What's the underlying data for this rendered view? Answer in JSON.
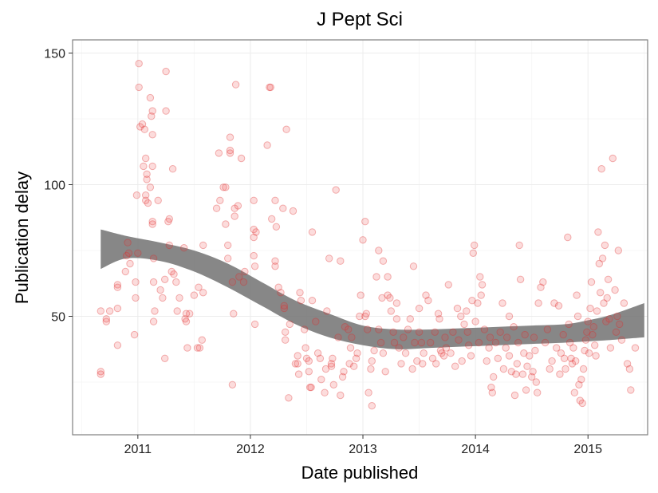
{
  "chart_data": {
    "type": "scatter",
    "title": "J Pept Sci",
    "xlabel": "Date published",
    "ylabel": "Publication delay",
    "xlim": [
      2010.42,
      2015.53
    ],
    "ylim": [
      5,
      155
    ],
    "x_ticks": [
      2011,
      2012,
      2013,
      2014,
      2015
    ],
    "x_tick_labels": [
      "2011",
      "2012",
      "2013",
      "2014",
      "2015"
    ],
    "y_ticks": [
      50,
      100,
      150
    ],
    "y_tick_labels": [
      "50",
      "100",
      "150"
    ],
    "grid": true,
    "legend": "none",
    "colors": {
      "points": "#f03c3c",
      "smooth_band": "#7a7a7a"
    },
    "points": [
      [
        2010.67,
        52
      ],
      [
        2010.67,
        29
      ],
      [
        2010.67,
        28
      ],
      [
        2010.72,
        49
      ],
      [
        2010.72,
        48
      ],
      [
        2010.75,
        52
      ],
      [
        2010.82,
        53
      ],
      [
        2010.82,
        62
      ],
      [
        2010.82,
        61
      ],
      [
        2010.82,
        39
      ],
      [
        2010.89,
        67
      ],
      [
        2010.9,
        73
      ],
      [
        2010.91,
        78
      ],
      [
        2010.92,
        74
      ],
      [
        2010.93,
        70
      ],
      [
        2010.97,
        43
      ],
      [
        2010.98,
        57
      ],
      [
        2010.98,
        63
      ],
      [
        2010.99,
        96
      ],
      [
        2011.0,
        74
      ],
      [
        2011.01,
        146
      ],
      [
        2011.01,
        137
      ],
      [
        2011.02,
        122
      ],
      [
        2011.04,
        123
      ],
      [
        2011.05,
        107
      ],
      [
        2011.06,
        121
      ],
      [
        2011.07,
        110
      ],
      [
        2011.07,
        96
      ],
      [
        2011.07,
        94
      ],
      [
        2011.08,
        104
      ],
      [
        2011.08,
        102
      ],
      [
        2011.09,
        93
      ],
      [
        2011.11,
        133
      ],
      [
        2011.11,
        99
      ],
      [
        2011.12,
        126
      ],
      [
        2011.13,
        128
      ],
      [
        2011.13,
        119
      ],
      [
        2011.13,
        107
      ],
      [
        2011.13,
        86
      ],
      [
        2011.13,
        85
      ],
      [
        2011.14,
        63
      ],
      [
        2011.14,
        48
      ],
      [
        2011.14,
        72
      ],
      [
        2011.15,
        52
      ],
      [
        2011.18,
        94
      ],
      [
        2011.2,
        60
      ],
      [
        2011.22,
        57
      ],
      [
        2011.24,
        34
      ],
      [
        2011.24,
        64
      ],
      [
        2011.25,
        143
      ],
      [
        2011.25,
        128
      ],
      [
        2011.27,
        86
      ],
      [
        2011.28,
        87
      ],
      [
        2011.28,
        77
      ],
      [
        2011.31,
        106
      ],
      [
        2011.3,
        67
      ],
      [
        2011.32,
        66
      ],
      [
        2011.34,
        63
      ],
      [
        2011.35,
        52
      ],
      [
        2011.37,
        57
      ],
      [
        2011.41,
        76
      ],
      [
        2011.42,
        49
      ],
      [
        2011.43,
        48
      ],
      [
        2011.43,
        51
      ],
      [
        2011.44,
        38
      ],
      [
        2011.46,
        51
      ],
      [
        2011.5,
        58
      ],
      [
        2011.53,
        38
      ],
      [
        2011.54,
        61
      ],
      [
        2011.55,
        38
      ],
      [
        2011.57,
        41
      ],
      [
        2011.58,
        59
      ],
      [
        2011.58,
        77
      ],
      [
        2011.7,
        91
      ],
      [
        2011.72,
        112
      ],
      [
        2011.73,
        94
      ],
      [
        2011.76,
        99
      ],
      [
        2011.78,
        99
      ],
      [
        2011.78,
        85
      ],
      [
        2011.8,
        77
      ],
      [
        2011.8,
        72
      ],
      [
        2011.82,
        118
      ],
      [
        2011.82,
        113
      ],
      [
        2011.82,
        112
      ],
      [
        2011.84,
        63
      ],
      [
        2011.85,
        51
      ],
      [
        2011.86,
        88
      ],
      [
        2011.86,
        91
      ],
      [
        2011.87,
        138
      ],
      [
        2011.89,
        92
      ],
      [
        2011.9,
        65
      ],
      [
        2011.92,
        110
      ],
      [
        2011.94,
        63
      ],
      [
        2011.95,
        67
      ],
      [
        2011.84,
        24
      ],
      [
        2012.03,
        94
      ],
      [
        2012.03,
        80
      ],
      [
        2012.03,
        83
      ],
      [
        2012.03,
        73
      ],
      [
        2012.04,
        69
      ],
      [
        2012.04,
        47
      ],
      [
        2012.05,
        82
      ],
      [
        2012.15,
        115
      ],
      [
        2012.17,
        137
      ],
      [
        2012.18,
        137
      ],
      [
        2012.19,
        87
      ],
      [
        2012.22,
        94
      ],
      [
        2012.22,
        69
      ],
      [
        2012.22,
        71
      ],
      [
        2012.23,
        84
      ],
      [
        2012.25,
        61
      ],
      [
        2012.27,
        59
      ],
      [
        2012.29,
        91
      ],
      [
        2012.3,
        53
      ],
      [
        2012.3,
        54
      ],
      [
        2012.31,
        44
      ],
      [
        2012.31,
        41
      ],
      [
        2012.32,
        121
      ],
      [
        2012.34,
        19
      ],
      [
        2012.35,
        47
      ],
      [
        2012.38,
        90
      ],
      [
        2012.4,
        32
      ],
      [
        2012.42,
        32
      ],
      [
        2012.42,
        35
      ],
      [
        2012.43,
        28
      ],
      [
        2012.44,
        59
      ],
      [
        2012.45,
        56
      ],
      [
        2012.48,
        45
      ],
      [
        2012.49,
        38
      ],
      [
        2012.5,
        34
      ],
      [
        2012.52,
        33
      ],
      [
        2012.52,
        29
      ],
      [
        2012.53,
        23
      ],
      [
        2012.54,
        23
      ],
      [
        2012.55,
        82
      ],
      [
        2012.55,
        56
      ],
      [
        2012.58,
        48
      ],
      [
        2012.6,
        36
      ],
      [
        2012.62,
        34
      ],
      [
        2012.63,
        26
      ],
      [
        2012.66,
        21
      ],
      [
        2012.67,
        30
      ],
      [
        2012.68,
        52
      ],
      [
        2012.7,
        72
      ],
      [
        2012.72,
        31
      ],
      [
        2012.72,
        32
      ],
      [
        2012.73,
        34
      ],
      [
        2012.74,
        24
      ],
      [
        2012.76,
        98
      ],
      [
        2012.78,
        42
      ],
      [
        2012.8,
        71
      ],
      [
        2012.8,
        20
      ],
      [
        2012.82,
        27
      ],
      [
        2012.83,
        29
      ],
      [
        2012.84,
        46
      ],
      [
        2012.87,
        45
      ],
      [
        2012.88,
        32
      ],
      [
        2012.89,
        38
      ],
      [
        2012.9,
        42
      ],
      [
        2012.92,
        31
      ],
      [
        2012.94,
        34
      ],
      [
        2012.95,
        36
      ],
      [
        2012.97,
        50
      ],
      [
        2012.98,
        58
      ],
      [
        2013.0,
        79
      ],
      [
        2013.02,
        86
      ],
      [
        2013.02,
        50
      ],
      [
        2013.03,
        51
      ],
      [
        2013.04,
        45
      ],
      [
        2013.05,
        21
      ],
      [
        2013.07,
        30
      ],
      [
        2013.08,
        16
      ],
      [
        2013.08,
        33
      ],
      [
        2013.1,
        37
      ],
      [
        2013.12,
        65
      ],
      [
        2013.14,
        75
      ],
      [
        2013.14,
        45
      ],
      [
        2013.16,
        40
      ],
      [
        2013.17,
        57
      ],
      [
        2013.18,
        71
      ],
      [
        2013.18,
        36
      ],
      [
        2013.2,
        29
      ],
      [
        2013.22,
        65
      ],
      [
        2013.22,
        58
      ],
      [
        2013.24,
        57
      ],
      [
        2013.25,
        52
      ],
      [
        2013.27,
        44
      ],
      [
        2013.28,
        40
      ],
      [
        2013.3,
        55
      ],
      [
        2013.3,
        49
      ],
      [
        2013.32,
        38
      ],
      [
        2013.34,
        32
      ],
      [
        2013.36,
        42
      ],
      [
        2013.38,
        36
      ],
      [
        2013.4,
        45
      ],
      [
        2013.42,
        49
      ],
      [
        2013.44,
        30
      ],
      [
        2013.45,
        69
      ],
      [
        2013.46,
        40
      ],
      [
        2013.48,
        33
      ],
      [
        2013.5,
        44
      ],
      [
        2013.5,
        53
      ],
      [
        2013.52,
        40
      ],
      [
        2013.53,
        32
      ],
      [
        2013.54,
        36
      ],
      [
        2013.56,
        58
      ],
      [
        2013.58,
        56
      ],
      [
        2013.6,
        40
      ],
      [
        2013.62,
        34
      ],
      [
        2013.64,
        44
      ],
      [
        2013.65,
        32
      ],
      [
        2013.67,
        51
      ],
      [
        2013.68,
        49
      ],
      [
        2013.69,
        37
      ],
      [
        2013.7,
        36
      ],
      [
        2013.72,
        35
      ],
      [
        2013.73,
        42
      ],
      [
        2013.74,
        38
      ],
      [
        2013.76,
        62
      ],
      [
        2013.78,
        36
      ],
      [
        2013.8,
        44
      ],
      [
        2013.82,
        31
      ],
      [
        2013.84,
        53
      ],
      [
        2013.85,
        41
      ],
      [
        2013.87,
        50
      ],
      [
        2013.88,
        33
      ],
      [
        2013.9,
        47
      ],
      [
        2013.92,
        52
      ],
      [
        2013.93,
        44
      ],
      [
        2013.94,
        39
      ],
      [
        2013.96,
        35
      ],
      [
        2013.97,
        56
      ],
      [
        2013.98,
        74
      ],
      [
        2013.99,
        77
      ],
      [
        2014.0,
        48
      ],
      [
        2014.02,
        55
      ],
      [
        2014.03,
        40
      ],
      [
        2014.04,
        65
      ],
      [
        2014.05,
        58
      ],
      [
        2014.06,
        62
      ],
      [
        2014.08,
        45
      ],
      [
        2014.1,
        33
      ],
      [
        2014.12,
        38
      ],
      [
        2014.13,
        42
      ],
      [
        2014.14,
        23
      ],
      [
        2014.15,
        21
      ],
      [
        2014.16,
        27
      ],
      [
        2014.18,
        40
      ],
      [
        2014.2,
        34
      ],
      [
        2014.22,
        44
      ],
      [
        2014.24,
        55
      ],
      [
        2014.25,
        30
      ],
      [
        2014.27,
        38
      ],
      [
        2014.28,
        42
      ],
      [
        2014.3,
        50
      ],
      [
        2014.3,
        35
      ],
      [
        2014.32,
        29
      ],
      [
        2014.34,
        46
      ],
      [
        2014.35,
        20
      ],
      [
        2014.36,
        28
      ],
      [
        2014.37,
        32
      ],
      [
        2014.38,
        40
      ],
      [
        2014.39,
        77
      ],
      [
        2014.4,
        64
      ],
      [
        2014.42,
        28
      ],
      [
        2014.43,
        36
      ],
      [
        2014.44,
        43
      ],
      [
        2014.45,
        22
      ],
      [
        2014.46,
        31
      ],
      [
        2014.48,
        35
      ],
      [
        2014.5,
        27
      ],
      [
        2014.51,
        29
      ],
      [
        2014.52,
        42
      ],
      [
        2014.53,
        37
      ],
      [
        2014.54,
        25
      ],
      [
        2014.55,
        21
      ],
      [
        2014.56,
        55
      ],
      [
        2014.58,
        61
      ],
      [
        2014.6,
        63
      ],
      [
        2014.62,
        40
      ],
      [
        2014.64,
        45
      ],
      [
        2014.66,
        30
      ],
      [
        2014.68,
        33
      ],
      [
        2014.7,
        55
      ],
      [
        2014.72,
        38
      ],
      [
        2014.74,
        54
      ],
      [
        2014.75,
        28
      ],
      [
        2014.76,
        36
      ],
      [
        2014.78,
        43
      ],
      [
        2014.79,
        34
      ],
      [
        2014.8,
        30
      ],
      [
        2014.82,
        80
      ],
      [
        2014.83,
        47
      ],
      [
        2014.84,
        40
      ],
      [
        2014.85,
        34
      ],
      [
        2014.86,
        32
      ],
      [
        2014.87,
        38
      ],
      [
        2014.88,
        21
      ],
      [
        2014.89,
        33
      ],
      [
        2014.9,
        58
      ],
      [
        2014.91,
        50
      ],
      [
        2014.92,
        24
      ],
      [
        2014.93,
        18
      ],
      [
        2014.94,
        26
      ],
      [
        2014.95,
        17
      ],
      [
        2014.96,
        30
      ],
      [
        2014.97,
        37
      ],
      [
        2014.98,
        41
      ],
      [
        2014.99,
        44
      ],
      [
        2015.0,
        48
      ],
      [
        2015.01,
        36
      ],
      [
        2015.02,
        53
      ],
      [
        2015.03,
        63
      ],
      [
        2015.04,
        43
      ],
      [
        2015.05,
        46
      ],
      [
        2015.06,
        39
      ],
      [
        2015.07,
        35
      ],
      [
        2015.08,
        52
      ],
      [
        2015.09,
        82
      ],
      [
        2015.1,
        70
      ],
      [
        2015.11,
        59
      ],
      [
        2015.12,
        106
      ],
      [
        2015.13,
        72
      ],
      [
        2015.14,
        55
      ],
      [
        2015.15,
        77
      ],
      [
        2015.16,
        48
      ],
      [
        2015.17,
        57
      ],
      [
        2015.18,
        64
      ],
      [
        2015.19,
        49
      ],
      [
        2015.2,
        38
      ],
      [
        2015.22,
        110
      ],
      [
        2015.24,
        60
      ],
      [
        2015.25,
        44
      ],
      [
        2015.26,
        50
      ],
      [
        2015.27,
        75
      ],
      [
        2015.28,
        47
      ],
      [
        2015.3,
        41
      ],
      [
        2015.32,
        55
      ],
      [
        2015.35,
        32
      ],
      [
        2015.37,
        30
      ],
      [
        2015.38,
        22
      ],
      [
        2015.42,
        38
      ]
    ],
    "smooth_band": {
      "x": [
        2010.67,
        2010.9,
        2011.2,
        2011.5,
        2011.8,
        2012.1,
        2012.4,
        2012.7,
        2013.0,
        2013.3,
        2013.6,
        2013.9,
        2014.2,
        2014.5,
        2014.8,
        2015.0,
        2015.2,
        2015.5
      ],
      "lower": [
        68,
        72,
        71,
        67,
        61,
        54,
        47,
        42,
        39,
        37.5,
        38,
        38.5,
        39,
        39.5,
        40,
        40.5,
        41,
        42
      ],
      "upper": [
        83,
        80.5,
        78,
        75,
        70,
        63,
        56,
        51,
        46.5,
        45,
        45,
        45.5,
        46,
        46.5,
        47,
        48.5,
        50.5,
        55
      ]
    }
  }
}
